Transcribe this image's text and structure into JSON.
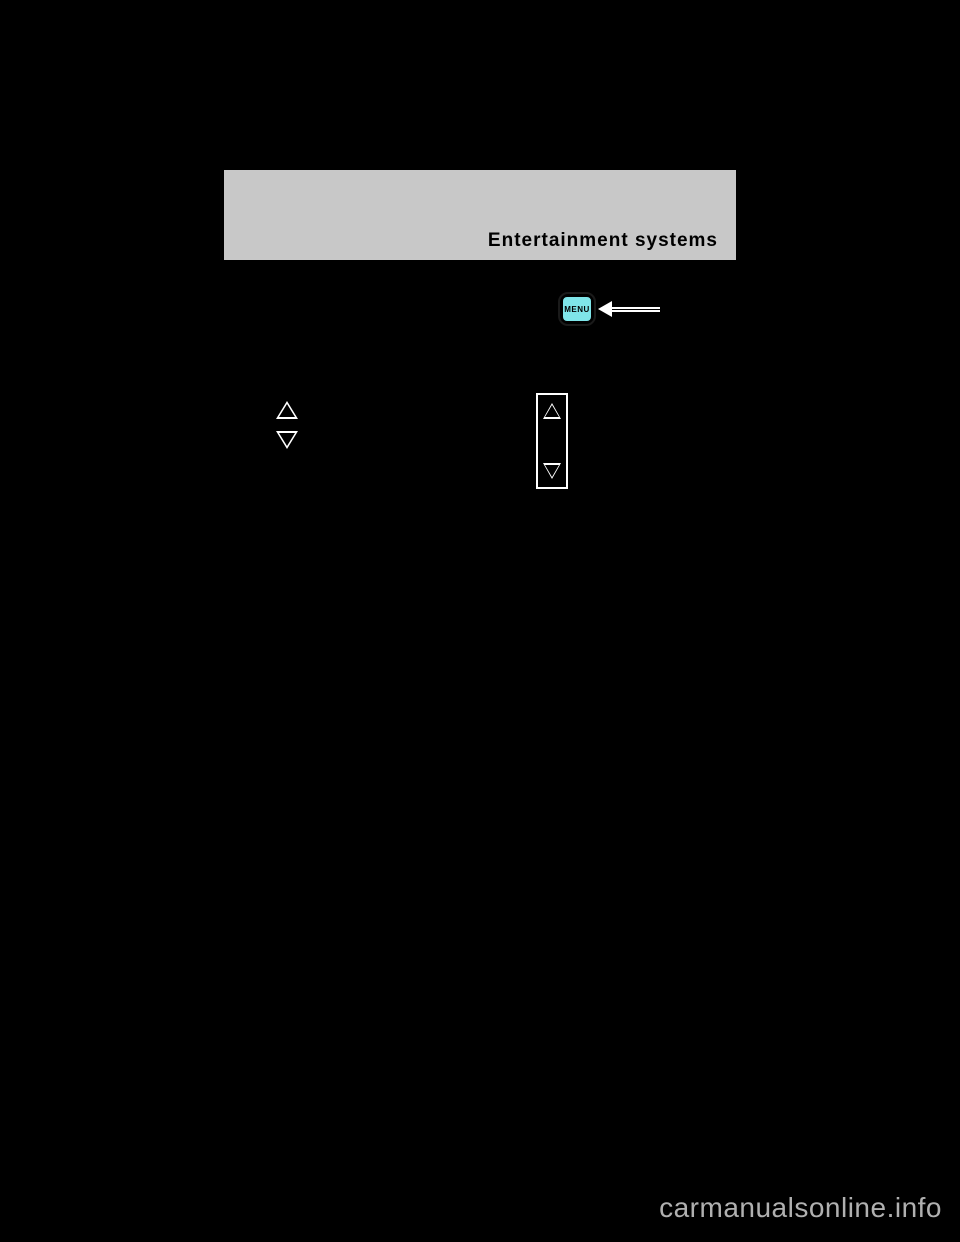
{
  "header": {
    "title": "Entertainment systems"
  },
  "menu": {
    "button_label": "MENU",
    "button_bg": "#7fe5e9",
    "button_border": "#000000"
  },
  "watermark": "carmanualsonline.info"
}
